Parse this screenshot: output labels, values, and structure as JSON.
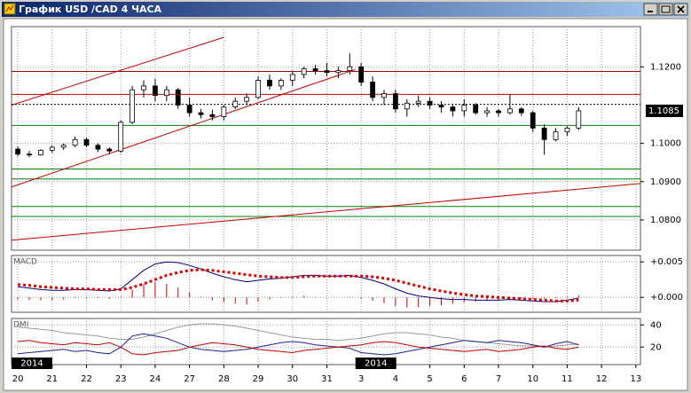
{
  "window_title": "График USD /CAD  4 ЧАСА",
  "chart_data": [
    {
      "type": "candlestick",
      "x": [
        0,
        2,
        4,
        6,
        8,
        10,
        12,
        14,
        16,
        18,
        20,
        22,
        24,
        26,
        28,
        30,
        32,
        34,
        36,
        38,
        40,
        42,
        44,
        46,
        48,
        50,
        52,
        54,
        56,
        58,
        60,
        62,
        64,
        66,
        68,
        70,
        72,
        74,
        76,
        78,
        80,
        82,
        84,
        86,
        88,
        90,
        92,
        94,
        96,
        98
      ],
      "open": [
        1.0985,
        1.0972,
        1.097,
        1.0982,
        1.099,
        1.0995,
        1.101,
        1.0995,
        1.0985,
        1.098,
        1.1055,
        1.114,
        1.115,
        1.1125,
        1.114,
        1.11,
        1.108,
        1.1075,
        1.107,
        1.1095,
        1.111,
        1.112,
        1.1165,
        1.115,
        1.1165,
        1.118,
        1.1195,
        1.119,
        1.1185,
        1.119,
        1.12,
        1.116,
        1.112,
        1.113,
        1.109,
        1.1105,
        1.111,
        1.11,
        1.1095,
        1.1085,
        1.11,
        1.108,
        1.1085,
        1.108,
        1.109,
        1.108,
        1.104,
        1.101,
        1.103,
        1.104
      ],
      "high": [
        1.0992,
        1.098,
        1.0985,
        1.0995,
        1.1,
        1.1018,
        1.1015,
        1.1,
        1.099,
        1.106,
        1.115,
        1.1165,
        1.1168,
        1.115,
        1.1145,
        1.112,
        1.109,
        1.1088,
        1.11,
        1.112,
        1.113,
        1.1175,
        1.118,
        1.117,
        1.119,
        1.12,
        1.1205,
        1.121,
        1.12,
        1.1235,
        1.121,
        1.1175,
        1.114,
        1.114,
        1.1115,
        1.1125,
        1.112,
        1.111,
        1.11,
        1.1115,
        1.1105,
        1.1095,
        1.109,
        1.1128,
        1.1095,
        1.1085,
        1.105,
        1.104,
        1.1045,
        1.1095
      ],
      "low": [
        1.0966,
        1.0964,
        1.0968,
        1.0975,
        1.0983,
        1.099,
        1.099,
        1.0978,
        1.0972,
        1.0975,
        1.105,
        1.112,
        1.111,
        1.111,
        1.109,
        1.107,
        1.1065,
        1.106,
        1.106,
        1.109,
        1.11,
        1.1115,
        1.114,
        1.114,
        1.115,
        1.117,
        1.118,
        1.1175,
        1.117,
        1.118,
        1.115,
        1.111,
        1.11,
        1.108,
        1.107,
        1.1095,
        1.109,
        1.108,
        1.107,
        1.107,
        1.1075,
        1.107,
        1.107,
        1.1075,
        1.1072,
        1.103,
        1.097,
        1.1005,
        1.102,
        1.1035
      ],
      "close": [
        1.0972,
        1.097,
        1.0982,
        1.099,
        1.0995,
        1.101,
        1.0995,
        1.0985,
        1.098,
        1.1055,
        1.114,
        1.115,
        1.1125,
        1.114,
        1.11,
        1.108,
        1.1075,
        1.107,
        1.1095,
        1.111,
        1.112,
        1.1165,
        1.115,
        1.1165,
        1.118,
        1.1195,
        1.119,
        1.1185,
        1.119,
        1.12,
        1.116,
        1.112,
        1.113,
        1.109,
        1.1105,
        1.111,
        1.11,
        1.1095,
        1.1085,
        1.11,
        1.108,
        1.1085,
        1.108,
        1.109,
        1.108,
        1.104,
        1.101,
        1.103,
        1.104,
        1.1085
      ],
      "xlim": [
        -1.1,
        108.8
      ],
      "ylim": [
        1.0721,
        1.1305
      ],
      "yticks": [
        {
          "value": 1.12,
          "label": "1.1200"
        },
        {
          "value": 1.1,
          "label": "1.1000"
        },
        {
          "value": 1.09,
          "label": "1.0900"
        },
        {
          "value": 1.08,
          "label": "1.0800"
        }
      ],
      "levels": [
        {
          "value": 1.1188,
          "color": "#a00000"
        },
        {
          "value": 1.1128,
          "color": "#c00000"
        },
        {
          "value": 1.1102,
          "color": "#000000",
          "style": "dotted"
        },
        {
          "value": 1.1047,
          "color": "#008000"
        },
        {
          "value": 1.0933,
          "color": "#008000"
        },
        {
          "value": 1.0907,
          "color": "#008000"
        },
        {
          "value": 1.0835,
          "color": "#008000"
        },
        {
          "value": 1.0809,
          "color": "#008000"
        }
      ],
      "trendlines": [
        {
          "x": [
            -1.1,
            36
          ],
          "y": [
            1.11,
            1.1277
          ],
          "color": "#c00000"
        },
        {
          "x": [
            -1.1,
            59
          ],
          "y": [
            1.0886,
            1.1193
          ],
          "color": "#c00000"
        },
        {
          "x": [
            -1.1,
            108.8
          ],
          "y": [
            1.0747,
            1.0895
          ],
          "color": "#c00000"
        }
      ],
      "last_price": 1.1085,
      "grid": true
    },
    {
      "type": "line",
      "title": "MACD",
      "x": [
        0,
        2,
        4,
        6,
        8,
        10,
        12,
        14,
        16,
        18,
        20,
        22,
        24,
        26,
        28,
        30,
        32,
        34,
        36,
        38,
        40,
        42,
        44,
        46,
        48,
        50,
        52,
        54,
        56,
        58,
        60,
        62,
        64,
        66,
        68,
        70,
        72,
        74,
        76,
        78,
        80,
        82,
        84,
        86,
        88,
        90,
        92,
        94,
        96,
        98
      ],
      "xlim": [
        -1.1,
        108.8
      ],
      "ylim": [
        -0.0021,
        0.0059
      ],
      "yticks": [
        {
          "value": 0.005,
          "label": "+0.005"
        },
        {
          "value": 0,
          "label": "+0.000"
        }
      ],
      "series": [
        {
          "color": "#cc0000",
          "style": "bars",
          "values": [
            -0.0003,
            -0.0004,
            -0.0004,
            -0.0004,
            -0.0003,
            -0.0001,
            -0.0001,
            -0.0001,
            -0.0002,
            0.0001,
            0.0011,
            0.0019,
            0.0022,
            0.0019,
            0.0014,
            0.0007,
            0.0001,
            -0.0004,
            -0.0007,
            -0.0009,
            -0.001,
            -0.0006,
            -0.0003,
            -0.0001,
            0.0001,
            0.0002,
            0.0001,
            0.0,
            0.0,
            0.0001,
            -0.0002,
            -0.0005,
            -0.0008,
            -0.0012,
            -0.0014,
            -0.0014,
            -0.0012,
            -0.0011,
            -0.0009,
            -0.0007,
            -0.0006,
            -0.0005,
            -0.0004,
            -0.0002,
            -0.0002,
            -0.0002,
            -0.0002,
            -0.0001,
            0.0001,
            0.0003
          ]
        },
        {
          "color": "#000080",
          "style": "line",
          "values": [
            0.0015,
            0.0013,
            0.0011,
            0.001,
            0.001,
            0.0011,
            0.0011,
            0.001,
            0.0009,
            0.0012,
            0.0025,
            0.0038,
            0.0047,
            0.005,
            0.0049,
            0.0045,
            0.004,
            0.0034,
            0.0029,
            0.0025,
            0.0022,
            0.0024,
            0.0026,
            0.0027,
            0.0029,
            0.0031,
            0.0031,
            0.003,
            0.003,
            0.0031,
            0.0028,
            0.0024,
            0.0019,
            0.0012,
            0.0006,
            0.0002,
            0.0,
            -0.0002,
            -0.0003,
            -0.0003,
            -0.0004,
            -0.0004,
            -0.0004,
            -0.0003,
            -0.0004,
            -0.0005,
            -0.0006,
            -0.0006,
            -0.0004,
            -0.0001
          ]
        },
        {
          "color": "#dd0000",
          "style": "dots",
          "values": [
            0.0018,
            0.0017,
            0.0015,
            0.0014,
            0.0013,
            0.0012,
            0.0012,
            0.0011,
            0.0011,
            0.0011,
            0.0014,
            0.0019,
            0.0025,
            0.0031,
            0.0035,
            0.0038,
            0.0039,
            0.0038,
            0.0036,
            0.0034,
            0.0032,
            0.003,
            0.0029,
            0.0028,
            0.0028,
            0.0029,
            0.003,
            0.003,
            0.003,
            0.003,
            0.003,
            0.0029,
            0.0027,
            0.0024,
            0.002,
            0.0016,
            0.0012,
            0.0009,
            0.0006,
            0.0004,
            0.0002,
            0.0001,
            0.0,
            -0.0001,
            -0.0002,
            -0.0003,
            -0.0004,
            -0.0005,
            -0.0005,
            -0.0004
          ]
        }
      ],
      "grid": true
    },
    {
      "type": "line",
      "title": "DMI",
      "x": [
        0,
        2,
        4,
        6,
        8,
        10,
        12,
        14,
        16,
        18,
        20,
        22,
        24,
        26,
        28,
        30,
        32,
        34,
        36,
        38,
        40,
        42,
        44,
        46,
        48,
        50,
        52,
        54,
        56,
        58,
        60,
        62,
        64,
        66,
        68,
        70,
        72,
        74,
        76,
        78,
        80,
        82,
        84,
        86,
        88,
        90,
        92,
        94,
        96,
        98
      ],
      "xlim": [
        -1.1,
        108.8
      ],
      "ylim": [
        4.2,
        45.8
      ],
      "yticks": [
        40,
        20
      ],
      "xticks": [
        {
          "value": 0,
          "label": "20"
        },
        {
          "value": 6,
          "label": "21"
        },
        {
          "value": 12,
          "label": "22"
        },
        {
          "value": 18,
          "label": "23"
        },
        {
          "value": 24,
          "label": "24"
        },
        {
          "value": 30,
          "label": "27"
        },
        {
          "value": 36,
          "label": "28"
        },
        {
          "value": 42,
          "label": "29"
        },
        {
          "value": 48,
          "label": "30"
        },
        {
          "value": 54,
          "label": "31"
        },
        {
          "value": 60,
          "label": "3"
        },
        {
          "value": 66,
          "label": "4"
        },
        {
          "value": 72,
          "label": "5"
        },
        {
          "value": 78,
          "label": "6"
        },
        {
          "value": 84,
          "label": "7"
        },
        {
          "value": 90,
          "label": "10"
        },
        {
          "value": 96,
          "label": "11"
        },
        {
          "value": 102,
          "label": "12"
        },
        {
          "value": 108,
          "label": "13"
        }
      ],
      "year_markers": [
        {
          "value": -1.1,
          "label": "2014"
        },
        {
          "value": 59,
          "label": "2014"
        }
      ],
      "series": [
        {
          "color": "#999999",
          "style": "line",
          "values": [
            38,
            37,
            36,
            35,
            33,
            32,
            31,
            30,
            28,
            27,
            27,
            29,
            32,
            35,
            38,
            40,
            41,
            41,
            40,
            39,
            37,
            35,
            33,
            31,
            29,
            28,
            27,
            27,
            26,
            27,
            28,
            30,
            32,
            33,
            33,
            32,
            31,
            29,
            28,
            26,
            25,
            24,
            23,
            22,
            21,
            21,
            20,
            21,
            22,
            23
          ]
        },
        {
          "color": "#1f1fa0",
          "style": "line",
          "values": [
            14,
            15,
            16,
            17,
            18,
            16,
            17,
            15,
            14,
            20,
            30,
            32,
            30,
            28,
            24,
            20,
            18,
            17,
            16,
            17,
            18,
            20,
            22,
            24,
            25,
            24,
            22,
            21,
            20,
            19,
            15,
            14,
            13,
            14,
            16,
            18,
            20,
            22,
            24,
            26,
            25,
            24,
            26,
            25,
            24,
            22,
            20,
            23,
            25,
            22
          ]
        },
        {
          "color": "#c00000",
          "style": "line",
          "values": [
            25,
            26,
            24,
            23,
            22,
            24,
            23,
            22,
            24,
            20,
            14,
            13,
            15,
            16,
            17,
            20,
            22,
            24,
            23,
            22,
            20,
            18,
            17,
            16,
            15,
            17,
            18,
            19,
            20,
            21,
            22,
            24,
            25,
            24,
            22,
            20,
            19,
            18,
            17,
            16,
            17,
            18,
            16,
            17,
            18,
            20,
            21,
            19,
            18,
            20
          ]
        }
      ],
      "grid": true
    }
  ]
}
